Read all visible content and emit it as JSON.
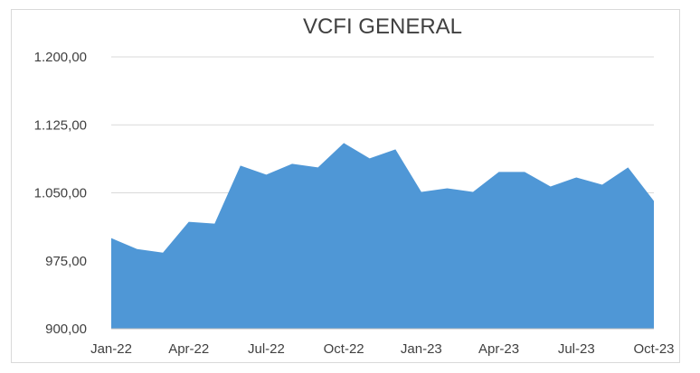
{
  "chart_data": {
    "type": "area",
    "title": "VCFI GENERAL",
    "xlabel": "",
    "ylabel": "",
    "ylim": [
      900,
      1200
    ],
    "yticks": [
      900,
      975,
      1050,
      1125,
      1200
    ],
    "ytick_labels": [
      "900,00",
      "975,00",
      "1.050,00",
      "1.125,00",
      "1.200,00"
    ],
    "x": [
      "Jan-22",
      "Feb-22",
      "Mar-22",
      "Apr-22",
      "May-22",
      "Jun-22",
      "Jul-22",
      "Aug-22",
      "Sep-22",
      "Oct-22",
      "Nov-22",
      "Dec-22",
      "Jan-23",
      "Feb-23",
      "Mar-23",
      "Apr-23",
      "May-23",
      "Jun-23",
      "Jul-23",
      "Aug-23",
      "Sep-23",
      "Oct-23"
    ],
    "xtick_labels": [
      "Jan-22",
      "Apr-22",
      "Jul-22",
      "Oct-22",
      "Jan-23",
      "Apr-23",
      "Jul-23",
      "Oct-23"
    ],
    "xtick_positions": [
      0,
      3,
      6,
      9,
      12,
      15,
      18,
      21
    ],
    "series": [
      {
        "values": [
          1000,
          988,
          984,
          1018,
          1016,
          1080,
          1070,
          1082,
          1078,
          1105,
          1088,
          1098,
          1051,
          1055,
          1051,
          1073,
          1073,
          1057,
          1067,
          1059,
          1078,
          1041
        ]
      }
    ],
    "grid": true,
    "legend": "none",
    "colors": {
      "fill": "#4f97d6",
      "grid": "#d9d9d9",
      "axis": "#bfbfbf",
      "text": "#404040"
    }
  }
}
